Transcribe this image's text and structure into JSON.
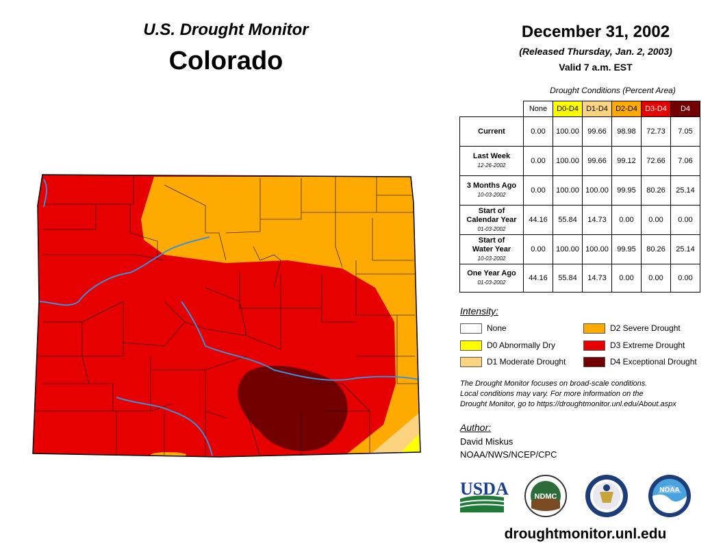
{
  "header": {
    "map_subtitle": "U.S. Drought Monitor",
    "map_title": "Colorado",
    "date": "December 31, 2002",
    "released": "(Released Thursday, Jan. 2, 2003)",
    "valid": "Valid 7 a.m. EST"
  },
  "table": {
    "caption": "Drought Conditions (Percent Area)",
    "columns": [
      "None",
      "D0-D4",
      "D1-D4",
      "D2-D4",
      "D3-D4",
      "D4"
    ],
    "rows": [
      {
        "label_lines": [
          "Current"
        ],
        "date": "",
        "values": [
          "0.00",
          "100.00",
          "99.66",
          "98.98",
          "72.73",
          "7.05"
        ]
      },
      {
        "label_lines": [
          "Last Week"
        ],
        "date": "12-26-2002",
        "values": [
          "0.00",
          "100.00",
          "99.66",
          "99.12",
          "72.66",
          "7.06"
        ]
      },
      {
        "label_lines": [
          "3 Months Ago"
        ],
        "date": "10-03-2002",
        "values": [
          "0.00",
          "100.00",
          "100.00",
          "99.95",
          "80.26",
          "25.14"
        ]
      },
      {
        "label_lines": [
          "Start of",
          "Calendar Year"
        ],
        "date": "01-03-2002",
        "values": [
          "44.16",
          "55.84",
          "14.73",
          "0.00",
          "0.00",
          "0.00"
        ]
      },
      {
        "label_lines": [
          "Start of",
          "Water Year"
        ],
        "date": "10-03-2002",
        "values": [
          "0.00",
          "100.00",
          "100.00",
          "99.95",
          "80.26",
          "25.14"
        ]
      },
      {
        "label_lines": [
          "One Year Ago"
        ],
        "date": "01-03-2002",
        "values": [
          "44.16",
          "55.84",
          "14.73",
          "0.00",
          "0.00",
          "0.00"
        ]
      }
    ]
  },
  "legend": {
    "title": "Intensity:",
    "items": [
      {
        "label": "None",
        "color": "#ffffff"
      },
      {
        "label": "D0 Abnormally Dry",
        "color": "#ffff00"
      },
      {
        "label": "D1 Moderate Drought",
        "color": "#fcd37f"
      },
      {
        "label": "D2 Severe Drought",
        "color": "#ffaa00"
      },
      {
        "label": "D3 Extreme Drought",
        "color": "#e60000"
      },
      {
        "label": "D4 Exceptional Drought",
        "color": "#730000"
      }
    ]
  },
  "note_lines": [
    "The Drought Monitor focuses on broad-scale conditions.",
    "Local conditions may vary. For more information on the",
    "Drought Monitor, go to https://droughtmonitor.unl.edu/About.aspx"
  ],
  "author": {
    "title": "Author:",
    "name": "David Miskus",
    "org": "NOAA/NWS/NCEP/CPC"
  },
  "logos": {
    "usda": "USDA",
    "ndmc": "NDMC",
    "noaa": "NOAA"
  },
  "footer": {
    "site": "droughtmonitor.unl.edu"
  },
  "colors": {
    "none": "#ffffff",
    "d0": "#ffff00",
    "d1": "#fcd37f",
    "d2": "#ffaa00",
    "d3": "#e60000",
    "d4": "#730000",
    "river": "#3d8fd9",
    "usda_blue": "#1b3f8f",
    "usda_green": "#1f7a3a"
  }
}
